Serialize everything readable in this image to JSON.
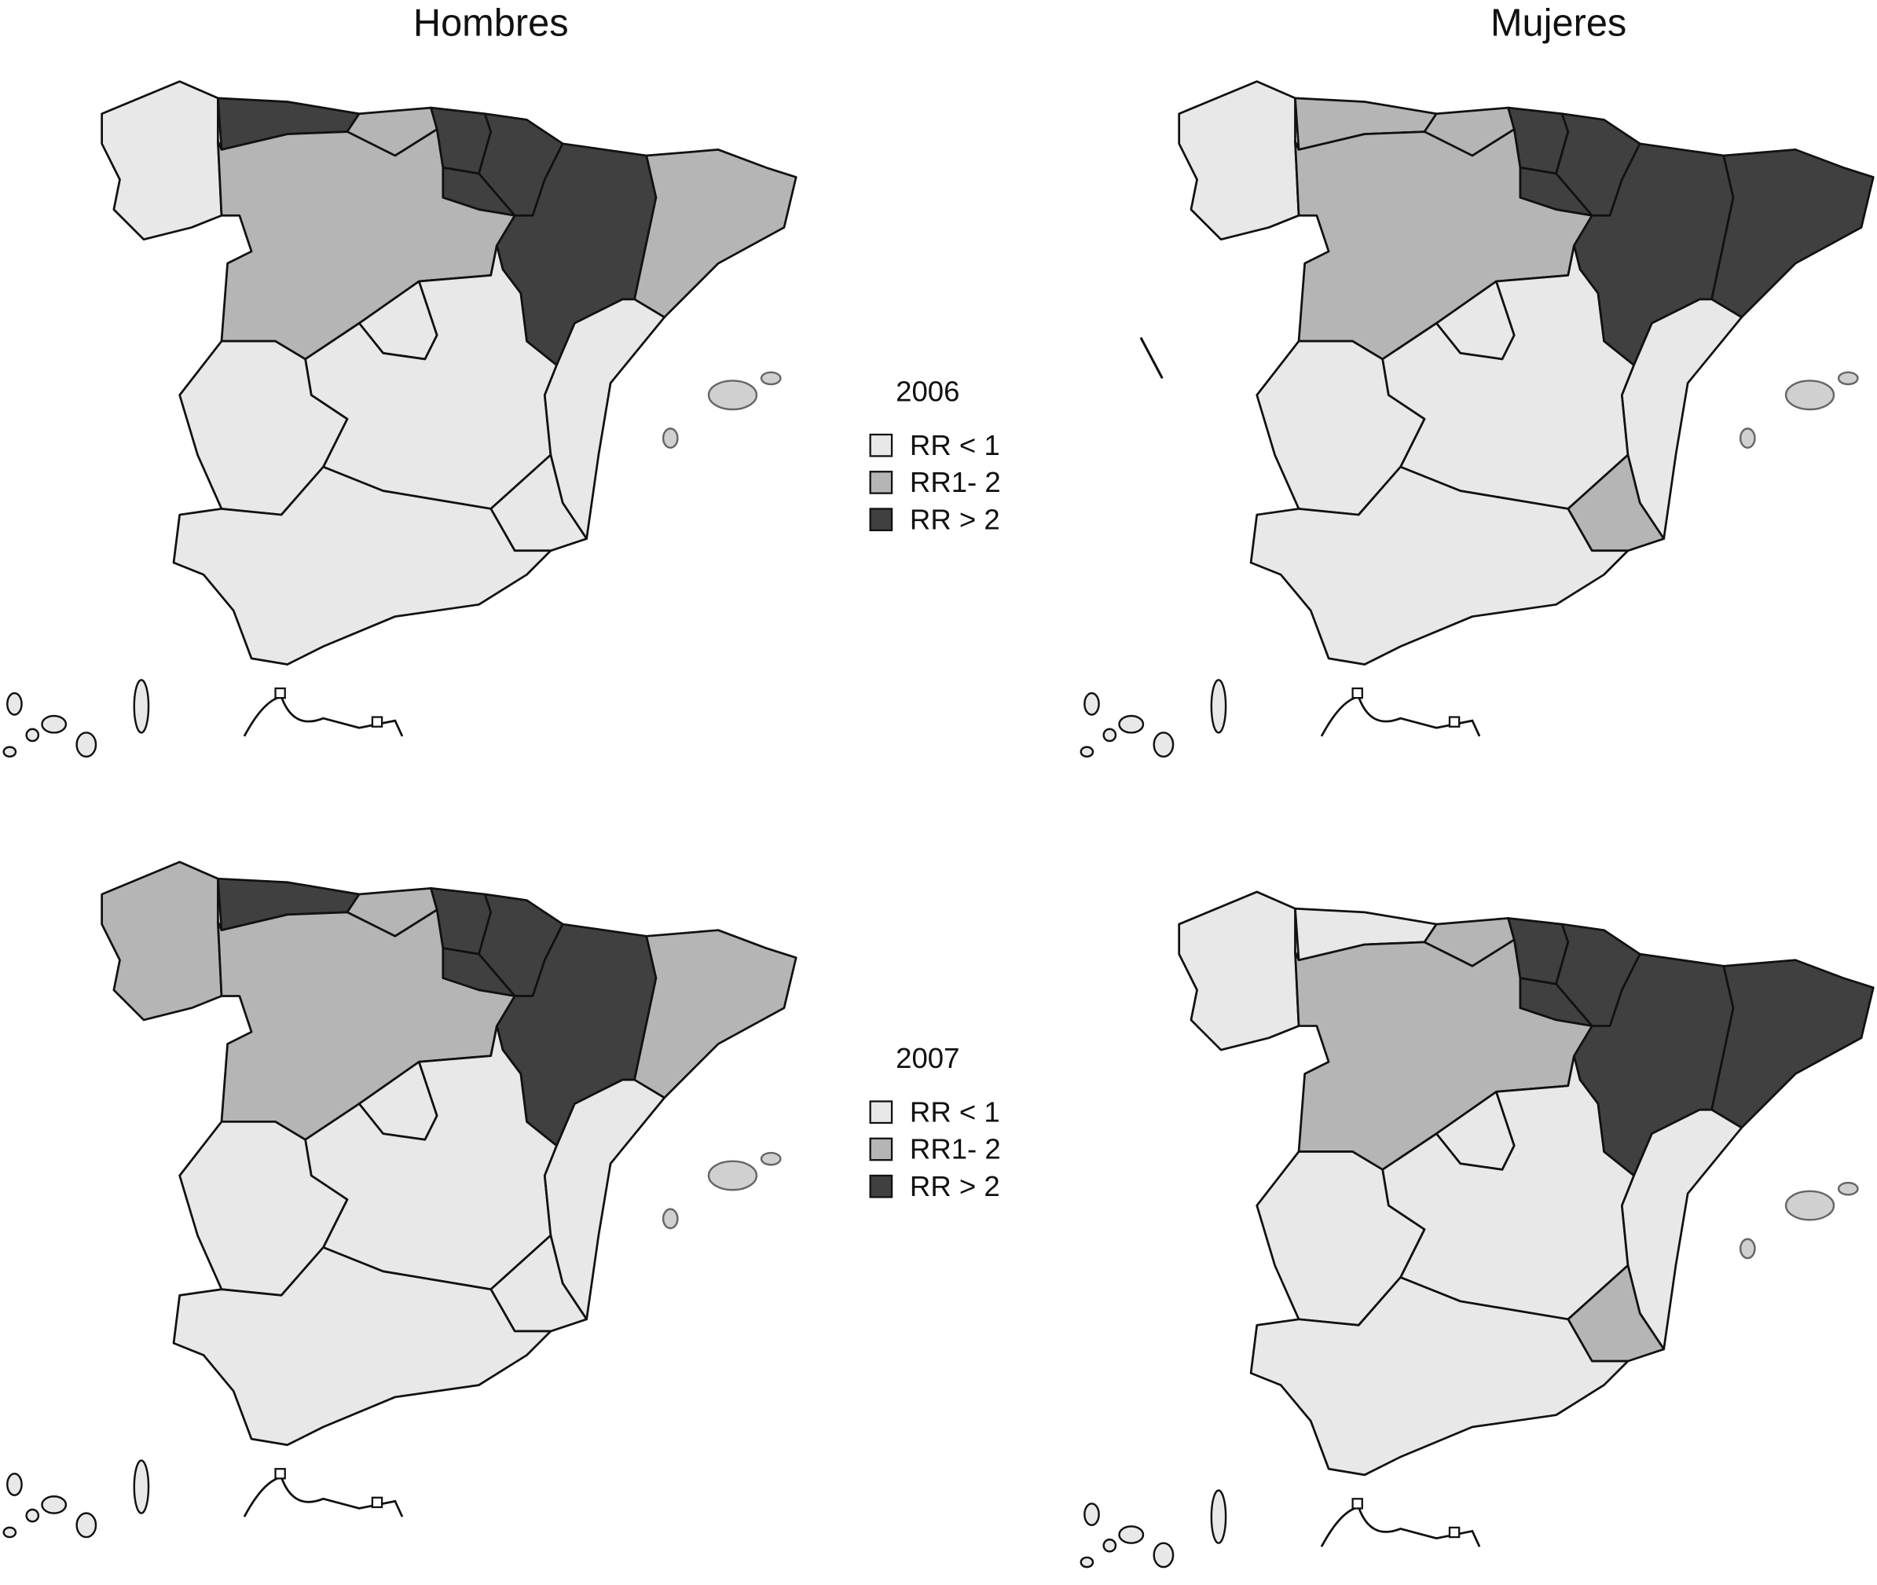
{
  "headers": [
    "Hombres",
    "Mujeres"
  ],
  "legends": [
    {
      "year": "2006",
      "items": [
        "RR < 1",
        "RR1- 2",
        "RR > 2"
      ]
    },
    {
      "year": "2007",
      "items": [
        "RR < 1",
        "RR1- 2",
        "RR > 2"
      ]
    }
  ]
}
